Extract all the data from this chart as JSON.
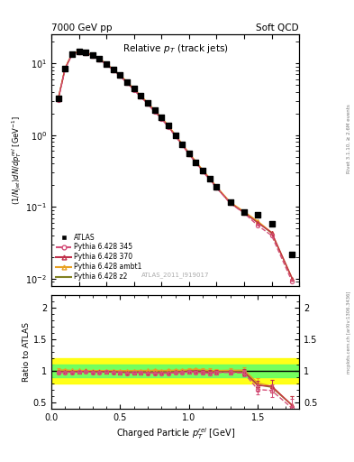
{
  "title_top_left": "7000 GeV pp",
  "title_top_right": "Soft QCD",
  "main_title": "Relative $p_T$ (track jets)",
  "xlabel": "Charged Particle $p_T^{rel}$ [GeV]",
  "ylabel_main": "$(1/N_{jet})dN/dp_T^{rel}$ [GeV$^{-1}$]",
  "ylabel_ratio": "Ratio to ATLAS",
  "right_label_top": "Rivet 3.1.10, ≥ 2.6M events",
  "right_label_bot": "mcplots.cern.ch [arXiv:1306.3436]",
  "watermark": "ATLAS_2011_I919017",
  "x_data": [
    0.05,
    0.1,
    0.15,
    0.2,
    0.25,
    0.3,
    0.35,
    0.4,
    0.45,
    0.5,
    0.55,
    0.6,
    0.65,
    0.7,
    0.75,
    0.8,
    0.85,
    0.9,
    0.95,
    1.0,
    1.05,
    1.1,
    1.15,
    1.2,
    1.3,
    1.4,
    1.5,
    1.6,
    1.75
  ],
  "atlas_y": [
    3.2,
    8.5,
    13.5,
    14.5,
    14.0,
    13.0,
    11.5,
    9.8,
    8.2,
    6.8,
    5.5,
    4.4,
    3.5,
    2.8,
    2.2,
    1.75,
    1.35,
    1.0,
    0.75,
    0.55,
    0.42,
    0.32,
    0.25,
    0.19,
    0.115,
    0.085,
    0.078,
    0.058,
    0.022
  ],
  "py345_y": [
    3.1,
    8.3,
    13.2,
    14.2,
    13.8,
    12.7,
    11.2,
    9.6,
    8.0,
    6.6,
    5.3,
    4.25,
    3.4,
    2.7,
    2.12,
    1.68,
    1.3,
    0.97,
    0.73,
    0.54,
    0.41,
    0.31,
    0.24,
    0.185,
    0.112,
    0.082,
    0.055,
    0.04,
    0.009
  ],
  "py370_y": [
    3.15,
    8.4,
    13.3,
    14.3,
    13.9,
    12.8,
    11.3,
    9.65,
    8.05,
    6.65,
    5.35,
    4.28,
    3.42,
    2.72,
    2.14,
    1.7,
    1.31,
    0.98,
    0.735,
    0.545,
    0.415,
    0.315,
    0.245,
    0.186,
    0.113,
    0.083,
    0.06,
    0.044,
    0.01
  ],
  "pyambt1_y": [
    3.25,
    8.6,
    13.6,
    14.6,
    14.1,
    13.05,
    11.55,
    9.85,
    8.25,
    6.82,
    5.52,
    4.42,
    3.52,
    2.82,
    2.22,
    1.76,
    1.36,
    1.01,
    0.755,
    0.56,
    0.43,
    0.325,
    0.252,
    0.191,
    0.116,
    0.086,
    0.063,
    0.044,
    0.01
  ],
  "pyz2_y": [
    3.2,
    8.45,
    13.45,
    14.45,
    14.0,
    12.95,
    11.45,
    9.78,
    8.18,
    6.76,
    5.46,
    4.37,
    3.48,
    2.78,
    2.19,
    1.735,
    1.34,
    0.995,
    0.748,
    0.553,
    0.422,
    0.32,
    0.248,
    0.188,
    0.114,
    0.084,
    0.061,
    0.043,
    0.01
  ],
  "ratio_345": [
    0.97,
    0.976,
    0.978,
    0.979,
    0.986,
    0.977,
    0.974,
    0.98,
    0.976,
    0.971,
    0.964,
    0.966,
    0.971,
    0.964,
    0.964,
    0.96,
    0.963,
    0.97,
    0.973,
    0.982,
    0.976,
    0.969,
    0.96,
    0.974,
    0.974,
    0.965,
    0.705,
    0.69,
    0.409
  ],
  "ratio_370": [
    0.984,
    0.988,
    0.985,
    0.986,
    0.993,
    0.985,
    0.983,
    0.985,
    0.982,
    0.978,
    0.973,
    0.973,
    0.977,
    0.971,
    0.973,
    0.971,
    0.97,
    0.98,
    0.98,
    0.991,
    0.988,
    0.984,
    0.98,
    0.979,
    0.983,
    0.976,
    0.769,
    0.758,
    0.455
  ],
  "ratio_ambt1": [
    1.016,
    1.012,
    1.007,
    1.007,
    1.007,
    1.004,
    1.004,
    1.005,
    1.006,
    1.003,
    1.004,
    1.005,
    1.006,
    1.007,
    1.009,
    1.006,
    1.007,
    1.01,
    1.007,
    1.018,
    1.024,
    1.016,
    1.008,
    1.005,
    1.009,
    1.012,
    0.808,
    0.759,
    0.455
  ],
  "ratio_z2": [
    1.0,
    0.994,
    0.996,
    0.997,
    1.0,
    0.996,
    0.996,
    0.998,
    0.998,
    0.994,
    0.993,
    0.993,
    0.994,
    0.993,
    0.995,
    0.994,
    0.993,
    0.995,
    0.997,
    1.005,
    1.005,
    1.0,
    0.992,
    0.989,
    0.991,
    0.988,
    0.782,
    0.741,
    0.455
  ],
  "ratio_345_err": [
    0.02,
    0.015,
    0.012,
    0.01,
    0.01,
    0.01,
    0.01,
    0.01,
    0.01,
    0.01,
    0.012,
    0.012,
    0.012,
    0.012,
    0.014,
    0.014,
    0.016,
    0.016,
    0.018,
    0.02,
    0.022,
    0.025,
    0.028,
    0.03,
    0.035,
    0.045,
    0.08,
    0.1,
    0.15
  ],
  "ratio_370_err": [
    0.02,
    0.015,
    0.012,
    0.01,
    0.01,
    0.01,
    0.01,
    0.01,
    0.01,
    0.01,
    0.012,
    0.012,
    0.012,
    0.012,
    0.014,
    0.014,
    0.016,
    0.016,
    0.018,
    0.02,
    0.022,
    0.025,
    0.028,
    0.03,
    0.035,
    0.045,
    0.08,
    0.1,
    0.15
  ],
  "ratio_ambt1_err": [
    0.02,
    0.015,
    0.012,
    0.01,
    0.01,
    0.01,
    0.01,
    0.01,
    0.01,
    0.01,
    0.012,
    0.012,
    0.012,
    0.012,
    0.014,
    0.014,
    0.016,
    0.016,
    0.018,
    0.02,
    0.022,
    0.025,
    0.028,
    0.03,
    0.035,
    0.045,
    0.08,
    0.1,
    0.15
  ],
  "band_x": [
    0.0,
    0.5,
    1.0,
    1.1,
    1.8
  ],
  "band_yellow_low": [
    0.8,
    0.8,
    0.8,
    0.8,
    0.8
  ],
  "band_yellow_high": [
    1.2,
    1.2,
    1.2,
    1.2,
    1.2
  ],
  "band_green_low": [
    0.9,
    0.9,
    0.9,
    0.9,
    0.9
  ],
  "band_green_high": [
    1.1,
    1.1,
    1.1,
    1.1,
    1.1
  ],
  "color_345": "#d4507a",
  "color_370": "#c0304a",
  "color_ambt1": "#e8a020",
  "color_z2": "#808020",
  "color_atlas": "#000000",
  "xlim": [
    0.0,
    1.8
  ],
  "ylim_main": [
    0.008,
    25
  ],
  "ylim_ratio": [
    0.4,
    2.2
  ],
  "ratio_yticks": [
    0.5,
    1.0,
    1.5,
    2.0
  ],
  "ratio_ytick_labels": [
    "0.5",
    "1",
    "1.5",
    "2"
  ]
}
